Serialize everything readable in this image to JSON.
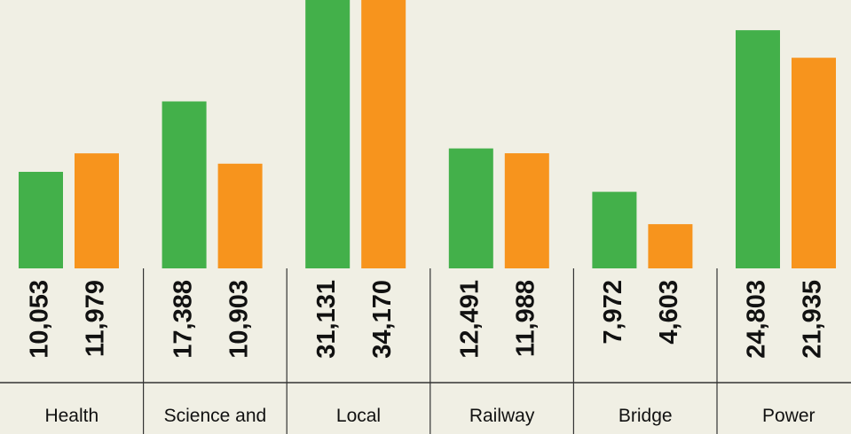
{
  "chart_data": {
    "type": "bar",
    "categories": [
      "Health",
      "Science and",
      "Local",
      "Railway",
      "Bridge",
      "Power"
    ],
    "series": [
      {
        "color": "#43b04a",
        "values": [
          10053,
          17388,
          31131,
          12491,
          7972,
          24803
        ],
        "value_labels": [
          "10,053",
          "17,388",
          "31,131",
          "12,491",
          "7,972",
          "24,803"
        ]
      },
      {
        "color": "#f7941d",
        "values": [
          11979,
          10903,
          34170,
          11988,
          4603,
          21935
        ],
        "value_labels": [
          "11,979",
          "10,903",
          "34,170",
          "11,988",
          "4,603",
          "21,935"
        ]
      }
    ],
    "ylim": [
      0,
      27950
    ]
  }
}
